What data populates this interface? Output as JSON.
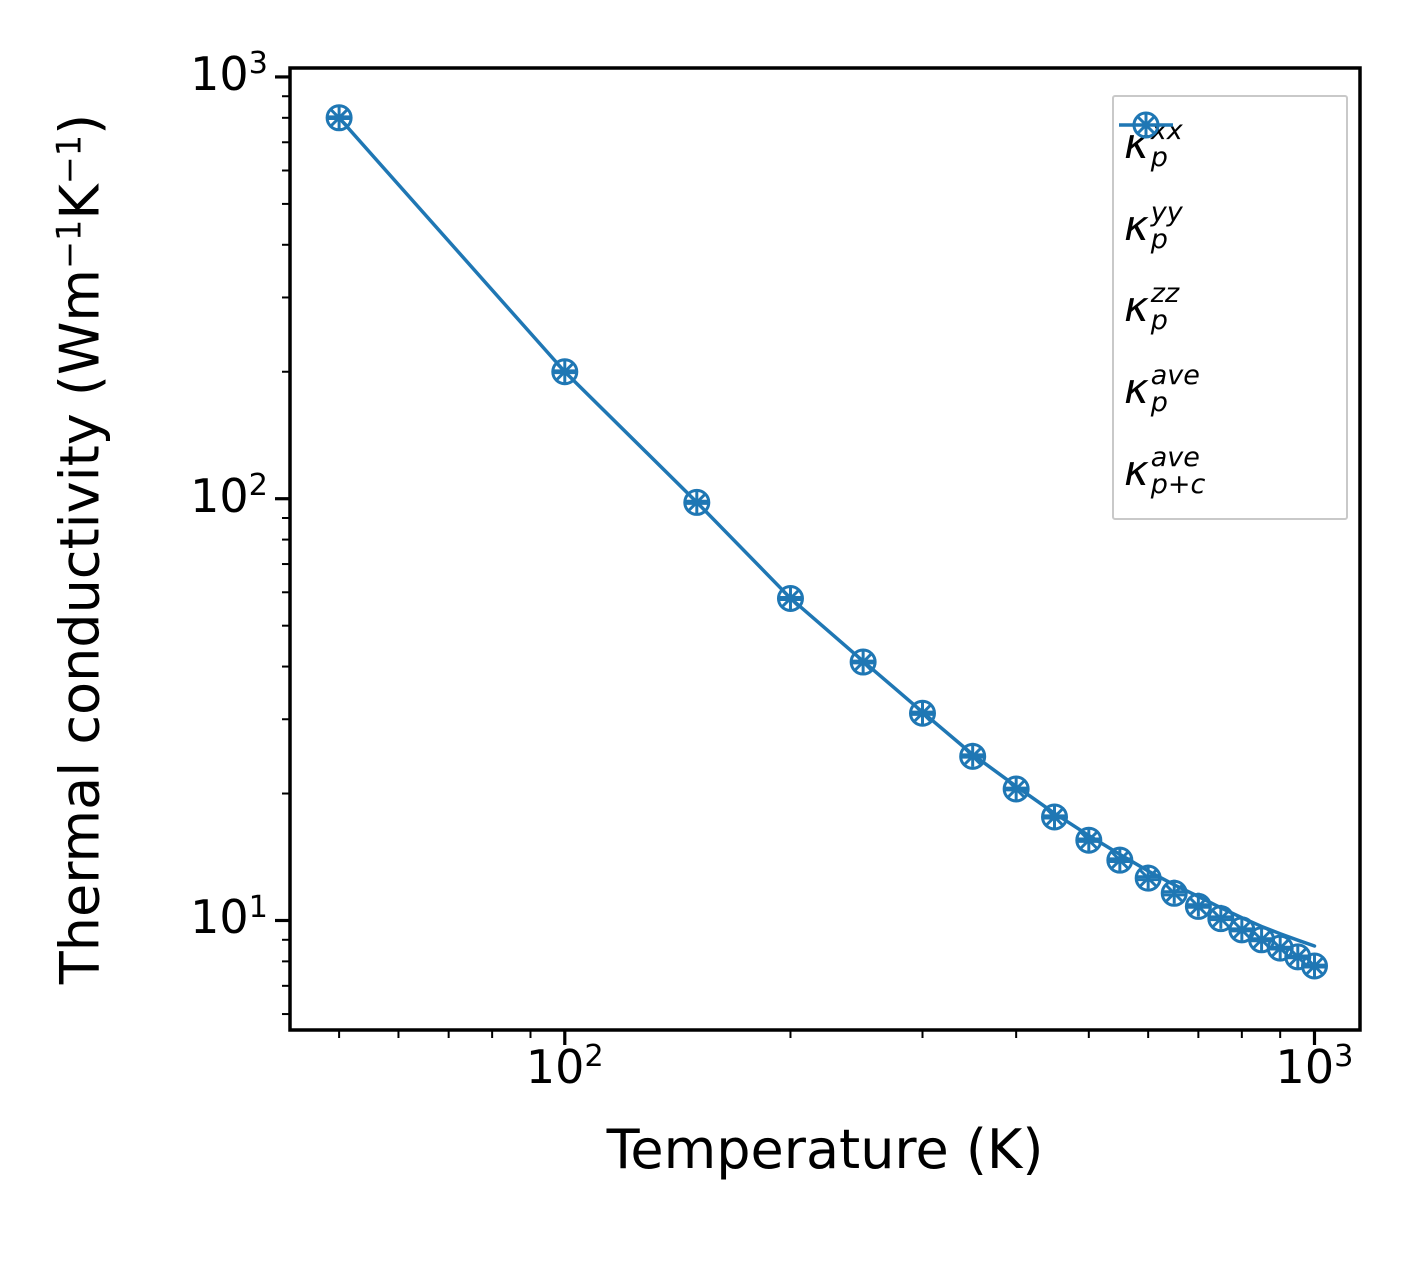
{
  "figure": {
    "accent_color": "#1f77b4",
    "frame_color": "#000000",
    "legend_border_color": "#c9c9c9"
  },
  "chart_data": {
    "type": "line",
    "xscale": "log",
    "yscale": "log",
    "title": "",
    "xlabel": "Temperature (K)",
    "ylabel": "Thermal conductivity (Wm⁻¹K⁻¹)",
    "ylabel_rich": [
      {
        "t": "Thermal conductivity (Wm"
      },
      {
        "sup": "−1"
      },
      {
        "t": "K"
      },
      {
        "sup": "−1"
      },
      {
        "t": ")"
      }
    ],
    "xlim": [
      43,
      1150
    ],
    "ylim": [
      5.5,
      1050
    ],
    "grid": false,
    "legend_position": "upper right",
    "x": [
      50,
      100,
      150,
      200,
      250,
      300,
      350,
      400,
      450,
      500,
      550,
      600,
      650,
      700,
      750,
      800,
      850,
      900,
      950,
      1000
    ],
    "series": [
      {
        "name": "kappa-p-xx",
        "marker": "plus",
        "line": false,
        "values": [
          804,
          201,
          98.6,
          58.3,
          41.2,
          31.2,
          24.7,
          20.6,
          17.7,
          15.6,
          14.0,
          12.7,
          11.7,
          10.9,
          10.2,
          9.55,
          9.05,
          8.64,
          8.24,
          7.84
        ]
      },
      {
        "name": "kappa-p-yy",
        "marker": "x",
        "line": false,
        "values": [
          800,
          200,
          98.0,
          58.0,
          41.0,
          31.0,
          24.5,
          20.5,
          17.6,
          15.5,
          13.9,
          12.6,
          11.6,
          10.8,
          10.1,
          9.5,
          9.0,
          8.6,
          8.2,
          7.8
        ]
      },
      {
        "name": "kappa-p-zz",
        "marker": "hline",
        "line": false,
        "values": [
          797,
          199,
          97.5,
          57.7,
          40.8,
          30.8,
          24.4,
          20.4,
          17.5,
          15.4,
          13.8,
          12.5,
          11.5,
          10.75,
          10.05,
          9.45,
          8.95,
          8.56,
          8.16,
          7.76
        ]
      },
      {
        "name": "kappa-p-ave",
        "marker": "circle",
        "line": false,
        "values": [
          800,
          200,
          98.0,
          58.0,
          41.0,
          31.0,
          24.5,
          20.5,
          17.6,
          15.5,
          13.9,
          12.6,
          11.6,
          10.8,
          10.1,
          9.5,
          9.0,
          8.6,
          8.2,
          7.8
        ]
      },
      {
        "name": "kappa-p-plus-c-ave",
        "marker": "line",
        "line": true,
        "values": [
          800,
          200,
          98.1,
          58.1,
          41.2,
          31.2,
          24.75,
          20.8,
          17.95,
          15.9,
          14.35,
          13.1,
          12.15,
          11.4,
          10.72,
          10.15,
          9.68,
          9.3,
          8.98,
          8.7
        ]
      }
    ],
    "legend": [
      {
        "marker": "plus",
        "symbol": "κ",
        "sup": "xx",
        "sub": "p"
      },
      {
        "marker": "x",
        "symbol": "κ",
        "sup": "yy",
        "sub": "p"
      },
      {
        "marker": "hline",
        "symbol": "κ",
        "sup": "zz",
        "sub": "p"
      },
      {
        "marker": "circle",
        "symbol": "κ",
        "sup": "ave",
        "sub": "p"
      },
      {
        "marker": "line",
        "symbol": "κ",
        "sup": "ave",
        "sub": "p+c"
      }
    ],
    "xticks": [
      {
        "value": 100,
        "base": "10",
        "exp": "2"
      },
      {
        "value": 1000,
        "base": "10",
        "exp": "3"
      }
    ],
    "yticks": [
      {
        "value": 10,
        "base": "10",
        "exp": "1"
      },
      {
        "value": 100,
        "base": "10",
        "exp": "2"
      },
      {
        "value": 1000,
        "base": "10",
        "exp": "3"
      }
    ]
  }
}
